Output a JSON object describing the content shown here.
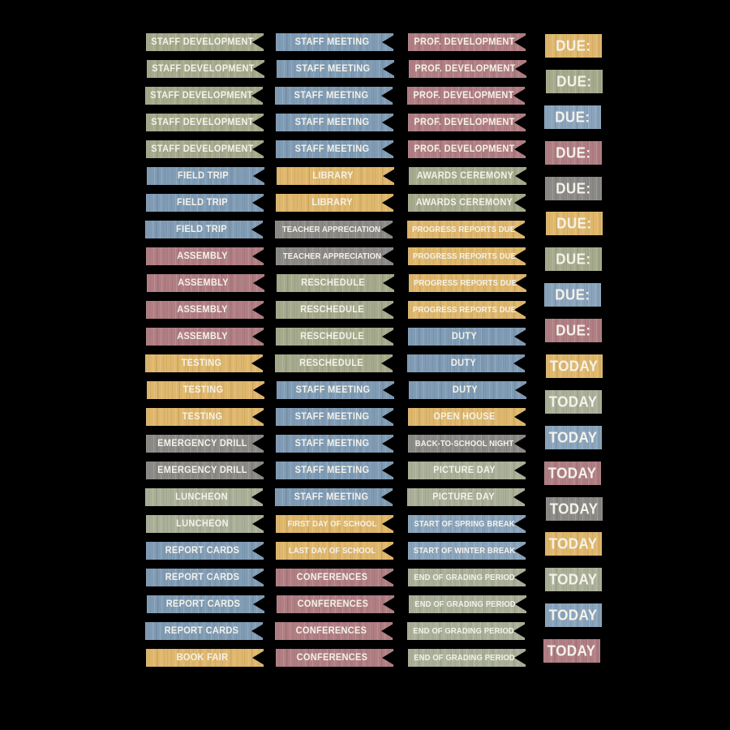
{
  "canvas": {
    "background": "#000000"
  },
  "palette": {
    "olive": "#a6aa8c",
    "sage": "#aab098",
    "blue": "#809cb5",
    "blue_light": "#8aa4bc",
    "yellow": "#dfb76c",
    "red": "#b07e83",
    "gray": "#8c8a86",
    "label_text": "#f4f2ea"
  },
  "columns": [
    {
      "name": "sticker-column-1",
      "type": "flag",
      "stickers": [
        {
          "label": "STAFF DEVELOPMENT",
          "color": "olive"
        },
        {
          "label": "STAFF DEVELOPMENT",
          "color": "olive"
        },
        {
          "label": "STAFF DEVELOPMENT",
          "color": "olive"
        },
        {
          "label": "STAFF DEVELOPMENT",
          "color": "olive"
        },
        {
          "label": "STAFF DEVELOPMENT",
          "color": "olive"
        },
        {
          "label": "FIELD TRIP",
          "color": "blue"
        },
        {
          "label": "FIELD TRIP",
          "color": "blue"
        },
        {
          "label": "FIELD TRIP",
          "color": "blue"
        },
        {
          "label": "ASSEMBLY",
          "color": "red"
        },
        {
          "label": "ASSEMBLY",
          "color": "red"
        },
        {
          "label": "ASSEMBLY",
          "color": "red"
        },
        {
          "label": "ASSEMBLY",
          "color": "red"
        },
        {
          "label": "TESTING",
          "color": "yellow"
        },
        {
          "label": "TESTING",
          "color": "yellow"
        },
        {
          "label": "TESTING",
          "color": "yellow"
        },
        {
          "label": "EMERGENCY DRILL",
          "color": "gray"
        },
        {
          "label": "EMERGENCY DRILL",
          "color": "gray"
        },
        {
          "label": "LUNCHEON",
          "color": "sage"
        },
        {
          "label": "LUNCHEON",
          "color": "sage"
        },
        {
          "label": "REPORT CARDS",
          "color": "blue"
        },
        {
          "label": "REPORT CARDS",
          "color": "blue"
        },
        {
          "label": "REPORT CARDS",
          "color": "blue"
        },
        {
          "label": "REPORT CARDS",
          "color": "blue"
        },
        {
          "label": "BOOK FAIR",
          "color": "yellow"
        }
      ]
    },
    {
      "name": "sticker-column-2",
      "type": "flag",
      "stickers": [
        {
          "label": "STAFF MEETING",
          "color": "blue"
        },
        {
          "label": "STAFF MEETING",
          "color": "blue"
        },
        {
          "label": "STAFF MEETING",
          "color": "blue"
        },
        {
          "label": "STAFF MEETING",
          "color": "blue"
        },
        {
          "label": "STAFF MEETING",
          "color": "blue"
        },
        {
          "label": "LIBRARY",
          "color": "yellow"
        },
        {
          "label": "LIBRARY",
          "color": "yellow"
        },
        {
          "label": "TEACHER APPRECIATION",
          "color": "gray"
        },
        {
          "label": "TEACHER APPRECIATION",
          "color": "gray"
        },
        {
          "label": "RESCHEDULE",
          "color": "olive"
        },
        {
          "label": "RESCHEDULE",
          "color": "olive"
        },
        {
          "label": "RESCHEDULE",
          "color": "olive"
        },
        {
          "label": "RESCHEDULE",
          "color": "olive"
        },
        {
          "label": "STAFF MEETING",
          "color": "blue"
        },
        {
          "label": "STAFF MEETING",
          "color": "blue"
        },
        {
          "label": "STAFF MEETING",
          "color": "blue"
        },
        {
          "label": "STAFF MEETING",
          "color": "blue"
        },
        {
          "label": "STAFF MEETING",
          "color": "blue"
        },
        {
          "label": "FIRST DAY OF SCHOOL",
          "color": "yellow"
        },
        {
          "label": "LAST DAY OF SCHOOL",
          "color": "yellow"
        },
        {
          "label": "CONFERENCES",
          "color": "red"
        },
        {
          "label": "CONFERENCES",
          "color": "red"
        },
        {
          "label": "CONFERENCES",
          "color": "red"
        },
        {
          "label": "CONFERENCES",
          "color": "red"
        }
      ]
    },
    {
      "name": "sticker-column-3",
      "type": "flag",
      "stickers": [
        {
          "label": "PROF. DEVELOPMENT",
          "color": "red"
        },
        {
          "label": "PROF. DEVELOPMENT",
          "color": "red"
        },
        {
          "label": "PROF. DEVELOPMENT",
          "color": "red"
        },
        {
          "label": "PROF. DEVELOPMENT",
          "color": "red"
        },
        {
          "label": "PROF. DEVELOPMENT",
          "color": "red"
        },
        {
          "label": "AWARDS CEREMONY",
          "color": "olive"
        },
        {
          "label": "AWARDS CEREMONY",
          "color": "olive"
        },
        {
          "label": "PROGRESS REPORTS DUE",
          "color": "yellow"
        },
        {
          "label": "PROGRESS REPORTS DUE",
          "color": "yellow"
        },
        {
          "label": "PROGRESS REPORTS DUE",
          "color": "yellow"
        },
        {
          "label": "PROGRESS REPORTS DUE",
          "color": "yellow"
        },
        {
          "label": "DUTY",
          "color": "blue"
        },
        {
          "label": "DUTY",
          "color": "blue"
        },
        {
          "label": "DUTY",
          "color": "blue"
        },
        {
          "label": "OPEN HOUSE",
          "color": "yellow"
        },
        {
          "label": "BACK-TO-SCHOOL NIGHT",
          "color": "gray"
        },
        {
          "label": "PICTURE DAY",
          "color": "sage"
        },
        {
          "label": "PICTURE DAY",
          "color": "sage"
        },
        {
          "label": "START OF SPRING BREAK",
          "color": "blue_light"
        },
        {
          "label": "START OF WINTER BREAK",
          "color": "blue_light"
        },
        {
          "label": "END OF GRADING PERIOD",
          "color": "sage"
        },
        {
          "label": "END OF GRADING PERIOD",
          "color": "sage"
        },
        {
          "label": "END OF GRADING PERIOD",
          "color": "sage"
        },
        {
          "label": "END OF GRADING PERIOD",
          "color": "sage"
        }
      ]
    },
    {
      "name": "sticker-column-4",
      "type": "tag",
      "stickers": [
        {
          "label": "DUE:",
          "color": "yellow"
        },
        {
          "label": "DUE:",
          "color": "olive"
        },
        {
          "label": "DUE:",
          "color": "blue_light"
        },
        {
          "label": "DUE:",
          "color": "red"
        },
        {
          "label": "DUE:",
          "color": "gray"
        },
        {
          "label": "DUE:",
          "color": "yellow"
        },
        {
          "label": "DUE:",
          "color": "olive"
        },
        {
          "label": "DUE:",
          "color": "blue_light"
        },
        {
          "label": "DUE:",
          "color": "red"
        },
        {
          "label": "TODAY",
          "color": "yellow"
        },
        {
          "label": "TODAY",
          "color": "sage"
        },
        {
          "label": "TODAY",
          "color": "blue_light"
        },
        {
          "label": "TODAY",
          "color": "red"
        },
        {
          "label": "TODAY",
          "color": "gray"
        },
        {
          "label": "TODAY",
          "color": "yellow"
        },
        {
          "label": "TODAY",
          "color": "sage"
        },
        {
          "label": "TODAY",
          "color": "blue_light"
        },
        {
          "label": "TODAY",
          "color": "red"
        }
      ]
    }
  ]
}
